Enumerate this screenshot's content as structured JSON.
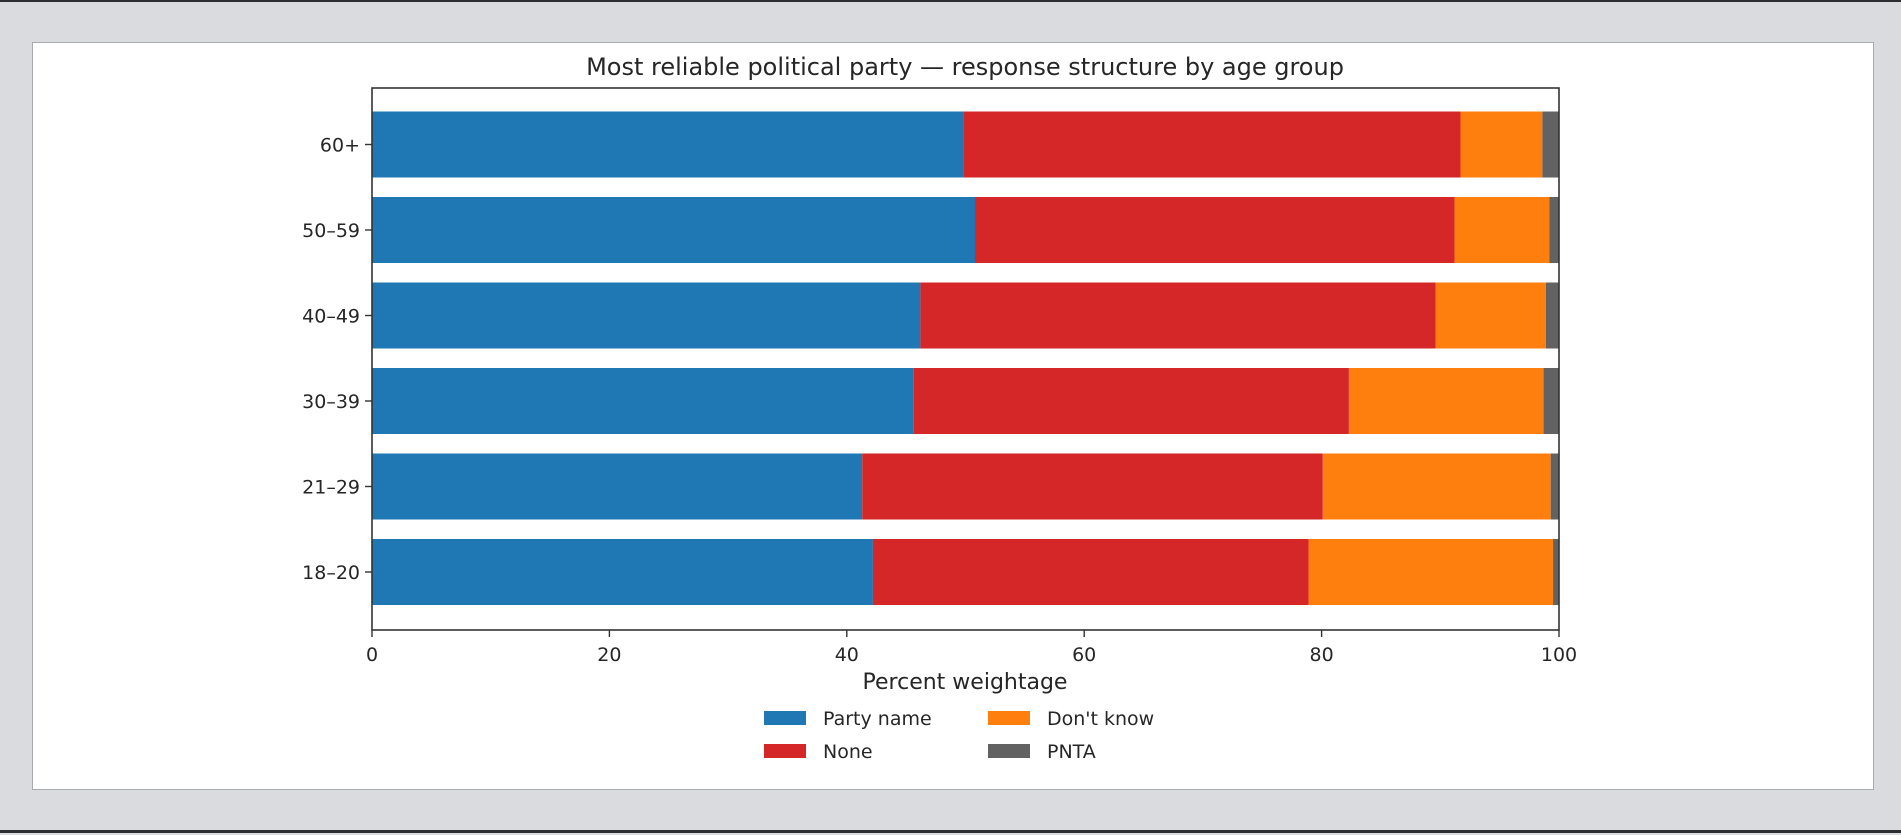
{
  "chart_data": {
    "type": "bar",
    "orientation": "horizontal",
    "stacked": true,
    "title": "Most reliable political party — response structure by age group",
    "xlabel": "Percent weightage",
    "ylabel": "",
    "xlim": [
      0,
      100
    ],
    "xticks": [
      "0",
      "20",
      "40",
      "60",
      "80",
      "100"
    ],
    "categories": [
      "60+",
      "50–59",
      "40–49",
      "30–39",
      "21–29",
      "18–20"
    ],
    "series": [
      {
        "name": "Party name",
        "color": "#1f77b4",
        "values": [
          49.8,
          50.8,
          46.2,
          45.6,
          41.3,
          42.2
        ]
      },
      {
        "name": "None",
        "color": "#d62728",
        "values": [
          41.9,
          40.4,
          43.4,
          36.7,
          38.8,
          36.7
        ]
      },
      {
        "name": "Don't know",
        "color": "#ff7f0e",
        "values": [
          6.9,
          8.0,
          9.3,
          16.4,
          19.2,
          20.6
        ]
      },
      {
        "name": "PNTA",
        "color": "#626262",
        "values": [
          1.4,
          0.8,
          1.1,
          1.3,
          0.7,
          0.5
        ]
      }
    ],
    "legend": {
      "placement": "bottom-center",
      "columns": 2
    },
    "grid": false
  }
}
